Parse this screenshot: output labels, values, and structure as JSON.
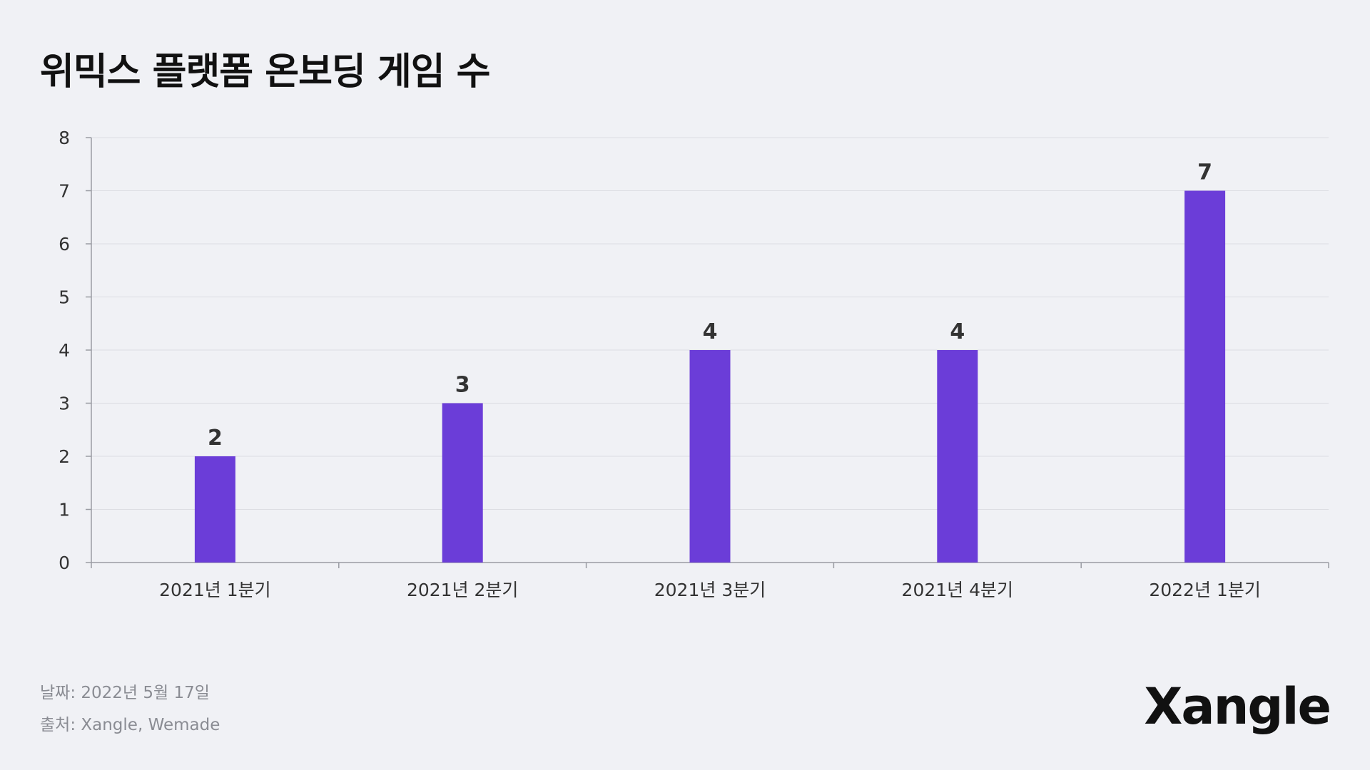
{
  "title": "위믹스 플랫폼 온보딩 게임 수",
  "footer": {
    "date": "날짜: 2022년 5월 17일",
    "source": "출처: Xangle, Wemade"
  },
  "logo_text": "Xangle",
  "colors": {
    "bar": "#6b3dd8",
    "background": "#f0f1f5",
    "grid": "#dcdde2",
    "axis": "#9a9ca3",
    "tick_text": "#333333",
    "label_text": "#333333"
  },
  "chart_data": {
    "type": "bar",
    "title": "위믹스 플랫폼 온보딩 게임 수",
    "categories": [
      "2021년 1분기",
      "2021년 2분기",
      "2021년 3분기",
      "2021년 4분기",
      "2022년 1분기"
    ],
    "values": [
      2,
      3,
      4,
      4,
      7
    ],
    "yticks": [
      "0",
      "1",
      "2",
      "3",
      "4",
      "5",
      "6",
      "7",
      "8"
    ],
    "ylim": [
      0,
      8
    ],
    "xlabel": "",
    "ylabel": "",
    "grid": true,
    "legend": "none",
    "data_labels": true
  }
}
